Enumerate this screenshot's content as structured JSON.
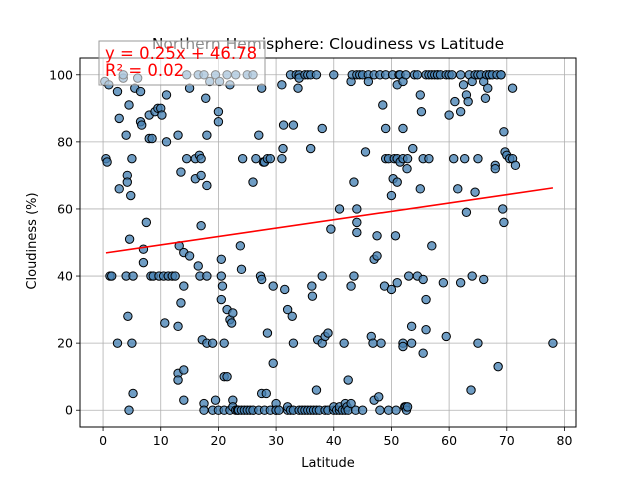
{
  "chart_data": {
    "type": "scatter",
    "title": "Northern Hemisphere: Cloudiness vs Latitude",
    "xlabel": "Latitude",
    "ylabel": "Cloudiness (%)",
    "xlim": [
      -4,
      82
    ],
    "ylim": [
      -5,
      105
    ],
    "xticks": [
      0,
      10,
      20,
      30,
      40,
      50,
      60,
      70,
      80
    ],
    "yticks": [
      0,
      20,
      40,
      60,
      80,
      100
    ],
    "grid": true,
    "colors": {
      "point_fill": "#4682b4",
      "point_edge": "#000000",
      "regression": "#ff0000",
      "grid": "#b0b0b0"
    },
    "regression": {
      "slope": 0.25,
      "intercept": 46.78,
      "x_range": [
        0.5,
        78
      ],
      "equation_text": "y = 0.25x + 46.78",
      "r2_text": "R² = 0.02"
    },
    "points": [
      [
        0.3,
        98
      ],
      [
        0.5,
        75
      ],
      [
        0.7,
        74
      ],
      [
        1,
        97
      ],
      [
        1.2,
        40
      ],
      [
        1.5,
        40
      ],
      [
        2.5,
        95
      ],
      [
        2.5,
        20
      ],
      [
        2.8,
        87
      ],
      [
        2.8,
        66
      ],
      [
        3.5,
        99
      ],
      [
        3.5,
        100
      ],
      [
        4,
        82
      ],
      [
        4,
        40
      ],
      [
        4.2,
        70
      ],
      [
        4.2,
        68
      ],
      [
        4.3,
        28
      ],
      [
        4.5,
        91
      ],
      [
        4.5,
        0
      ],
      [
        4.6,
        51
      ],
      [
        4.8,
        64
      ],
      [
        5,
        75
      ],
      [
        5,
        20
      ],
      [
        5.2,
        5
      ],
      [
        5.2,
        40
      ],
      [
        5.5,
        96
      ],
      [
        6,
        99
      ],
      [
        6.5,
        86
      ],
      [
        6.5,
        95
      ],
      [
        6.7,
        85
      ],
      [
        7,
        48
      ],
      [
        7,
        44
      ],
      [
        7.5,
        56
      ],
      [
        8,
        88
      ],
      [
        8,
        81
      ],
      [
        8.3,
        40
      ],
      [
        8.5,
        81
      ],
      [
        8.7,
        40
      ],
      [
        9,
        89
      ],
      [
        9.5,
        90
      ],
      [
        9.7,
        40
      ],
      [
        10,
        90
      ],
      [
        10.2,
        88
      ],
      [
        10.5,
        40
      ],
      [
        10.7,
        26
      ],
      [
        11,
        80
      ],
      [
        11,
        94
      ],
      [
        11.3,
        40
      ],
      [
        12,
        40
      ],
      [
        12.5,
        40
      ],
      [
        13,
        11
      ],
      [
        13,
        9
      ],
      [
        13,
        25
      ],
      [
        13,
        82
      ],
      [
        13.2,
        49
      ],
      [
        13.5,
        71
      ],
      [
        13.5,
        32
      ],
      [
        14,
        47
      ],
      [
        14,
        12
      ],
      [
        14,
        3
      ],
      [
        14,
        37
      ],
      [
        14.5,
        100
      ],
      [
        14.5,
        75
      ],
      [
        15,
        96
      ],
      [
        15,
        46
      ],
      [
        16,
        75
      ],
      [
        16,
        69
      ],
      [
        16.5,
        100
      ],
      [
        16.5,
        43
      ],
      [
        16.7,
        76
      ],
      [
        16.8,
        40
      ],
      [
        17,
        75
      ],
      [
        17,
        55
      ],
      [
        17,
        70
      ],
      [
        17.2,
        21
      ],
      [
        17.5,
        2
      ],
      [
        17.5,
        0
      ],
      [
        17.5,
        100
      ],
      [
        17.8,
        93
      ],
      [
        18,
        20
      ],
      [
        18,
        82
      ],
      [
        18,
        40
      ],
      [
        18,
        67
      ],
      [
        18.5,
        98
      ],
      [
        19,
        0
      ],
      [
        19,
        20
      ],
      [
        19.5,
        100
      ],
      [
        19.5,
        3
      ],
      [
        20,
        86
      ],
      [
        20,
        89
      ],
      [
        20,
        0
      ],
      [
        20.2,
        98
      ],
      [
        20.5,
        33
      ],
      [
        20.5,
        45
      ],
      [
        20.5,
        40
      ],
      [
        20.7,
        37
      ],
      [
        21,
        20
      ],
      [
        21,
        10
      ],
      [
        21,
        0
      ],
      [
        21.5,
        100
      ],
      [
        21.5,
        30
      ],
      [
        21.5,
        10
      ],
      [
        22,
        27
      ],
      [
        22,
        97
      ],
      [
        22,
        0
      ],
      [
        22.3,
        26
      ],
      [
        22.5,
        3
      ],
      [
        22.5,
        29
      ],
      [
        22.5,
        1
      ],
      [
        23,
        0
      ],
      [
        23,
        100
      ],
      [
        23.3,
        0
      ],
      [
        23.5,
        0
      ],
      [
        23.8,
        49
      ],
      [
        24,
        42
      ],
      [
        24,
        0
      ],
      [
        24.2,
        75
      ],
      [
        24.5,
        0
      ],
      [
        25,
        100
      ],
      [
        25,
        0
      ],
      [
        25.5,
        0
      ],
      [
        26,
        68
      ],
      [
        26,
        100
      ],
      [
        26,
        0
      ],
      [
        26.5,
        75
      ],
      [
        27,
        0
      ],
      [
        27,
        82
      ],
      [
        27.3,
        40
      ],
      [
        27.5,
        96
      ],
      [
        27.5,
        5
      ],
      [
        27.5,
        39
      ],
      [
        27.8,
        74
      ],
      [
        28,
        0
      ],
      [
        28,
        74
      ],
      [
        28.3,
        5
      ],
      [
        28.5,
        23
      ],
      [
        28.5,
        75
      ],
      [
        29,
        0
      ],
      [
        29,
        75
      ],
      [
        29.5,
        14
      ],
      [
        29.5,
        37
      ],
      [
        30,
        0
      ],
      [
        30,
        2
      ],
      [
        30,
        0
      ],
      [
        30.5,
        0
      ],
      [
        31,
        75
      ],
      [
        31,
        97
      ],
      [
        31.2,
        78
      ],
      [
        31.3,
        85
      ],
      [
        31.5,
        36
      ],
      [
        32,
        0
      ],
      [
        32,
        1
      ],
      [
        32,
        30
      ],
      [
        32.5,
        100
      ],
      [
        32.5,
        0
      ],
      [
        32.8,
        28
      ],
      [
        33,
        20
      ],
      [
        33,
        85
      ],
      [
        33,
        0
      ],
      [
        33.5,
        100
      ],
      [
        33.8,
        96
      ],
      [
        34,
        100
      ],
      [
        34,
        99
      ],
      [
        34,
        0
      ],
      [
        34.5,
        0
      ],
      [
        35,
        100
      ],
      [
        35,
        0
      ],
      [
        35.5,
        100
      ],
      [
        35.5,
        0
      ],
      [
        36,
        100
      ],
      [
        36,
        0
      ],
      [
        36,
        78
      ],
      [
        36.2,
        37
      ],
      [
        36.3,
        34
      ],
      [
        36.5,
        0
      ],
      [
        37,
        6
      ],
      [
        37,
        100
      ],
      [
        37,
        0
      ],
      [
        37.2,
        21
      ],
      [
        37.5,
        0
      ],
      [
        38,
        20
      ],
      [
        38,
        40
      ],
      [
        38,
        84
      ],
      [
        38.5,
        22
      ],
      [
        38.5,
        0
      ],
      [
        39,
        0
      ],
      [
        39,
        23
      ],
      [
        39.5,
        54
      ],
      [
        40,
        100
      ],
      [
        40,
        0
      ],
      [
        40,
        1
      ],
      [
        40.5,
        0
      ],
      [
        41,
        0
      ],
      [
        41,
        60
      ],
      [
        41,
        1
      ],
      [
        41.5,
        0
      ],
      [
        41.8,
        20
      ],
      [
        42,
        2
      ],
      [
        42,
        0
      ],
      [
        42.3,
        1
      ],
      [
        42.5,
        9
      ],
      [
        42.5,
        0
      ],
      [
        43,
        37
      ],
      [
        43,
        98
      ],
      [
        43,
        2
      ],
      [
        43.2,
        100
      ],
      [
        43.5,
        40
      ],
      [
        43.5,
        68
      ],
      [
        43.8,
        0
      ],
      [
        44,
        56
      ],
      [
        44,
        60
      ],
      [
        44,
        53
      ],
      [
        44,
        100
      ],
      [
        44.5,
        100
      ],
      [
        45,
        100
      ],
      [
        45,
        0
      ],
      [
        45.5,
        77
      ],
      [
        46,
        100
      ],
      [
        46,
        98
      ],
      [
        46.5,
        22
      ],
      [
        46.8,
        20
      ],
      [
        47,
        45
      ],
      [
        47,
        3
      ],
      [
        47,
        100
      ],
      [
        47.5,
        52
      ],
      [
        47.5,
        46
      ],
      [
        47.8,
        4
      ],
      [
        48,
        100
      ],
      [
        48,
        0
      ],
      [
        48.2,
        20
      ],
      [
        48.5,
        91
      ],
      [
        48.8,
        37
      ],
      [
        49,
        84
      ],
      [
        49,
        75
      ],
      [
        49,
        100
      ],
      [
        49.5,
        0
      ],
      [
        49.5,
        75
      ],
      [
        50,
        36
      ],
      [
        50,
        64
      ],
      [
        50.2,
        100
      ],
      [
        50.3,
        69
      ],
      [
        50.5,
        75
      ],
      [
        50.7,
        52
      ],
      [
        50.8,
        0
      ],
      [
        51,
        75
      ],
      [
        51,
        97
      ],
      [
        51,
        68
      ],
      [
        51,
        38
      ],
      [
        51.3,
        100
      ],
      [
        51.5,
        74
      ],
      [
        51.5,
        100
      ],
      [
        52,
        75
      ],
      [
        52,
        98
      ],
      [
        52,
        84
      ],
      [
        52,
        20
      ],
      [
        52,
        19
      ],
      [
        52.3,
        1
      ],
      [
        52.5,
        1
      ],
      [
        52.5,
        100
      ],
      [
        52.6,
        0
      ],
      [
        52.7,
        72
      ],
      [
        52.8,
        75
      ],
      [
        52.8,
        1
      ],
      [
        53,
        40
      ],
      [
        53.5,
        25
      ],
      [
        53.5,
        20
      ],
      [
        53.7,
        78
      ],
      [
        54,
        100
      ],
      [
        54.5,
        40
      ],
      [
        54.5,
        100
      ],
      [
        55,
        66
      ],
      [
        55,
        94
      ],
      [
        55.2,
        89
      ],
      [
        55.5,
        75
      ],
      [
        55.5,
        17
      ],
      [
        55.5,
        39
      ],
      [
        56,
        100
      ],
      [
        56,
        24
      ],
      [
        56,
        33
      ],
      [
        56.5,
        100
      ],
      [
        56.5,
        75
      ],
      [
        57,
        100
      ],
      [
        57,
        49
      ],
      [
        57.5,
        100
      ],
      [
        58,
        100
      ],
      [
        58,
        100
      ],
      [
        58.5,
        100
      ],
      [
        59,
        38
      ],
      [
        59.5,
        100
      ],
      [
        59.5,
        22
      ],
      [
        60,
        88
      ],
      [
        60,
        100
      ],
      [
        60.5,
        100
      ],
      [
        60.8,
        75
      ],
      [
        61,
        92
      ],
      [
        61.5,
        66
      ],
      [
        62,
        100
      ],
      [
        62,
        89
      ],
      [
        62,
        38
      ],
      [
        62.5,
        97
      ],
      [
        62.7,
        75
      ],
      [
        63,
        59
      ],
      [
        63,
        94
      ],
      [
        63.3,
        92
      ],
      [
        63.5,
        100
      ],
      [
        63.8,
        6
      ],
      [
        64,
        40
      ],
      [
        64,
        98
      ],
      [
        64.5,
        65
      ],
      [
        64.5,
        100
      ],
      [
        65,
        100
      ],
      [
        65,
        20
      ],
      [
        65,
        75
      ],
      [
        65.5,
        100
      ],
      [
        66,
        98
      ],
      [
        66,
        39
      ],
      [
        66.3,
        93
      ],
      [
        66.5,
        100
      ],
      [
        66.7,
        96
      ],
      [
        67,
        100
      ],
      [
        67,
        100
      ],
      [
        67.5,
        100
      ],
      [
        68,
        73
      ],
      [
        68,
        72
      ],
      [
        68.3,
        100
      ],
      [
        68.5,
        13
      ],
      [
        69,
        100
      ],
      [
        69,
        100
      ],
      [
        69.3,
        60
      ],
      [
        69.5,
        56
      ],
      [
        69.5,
        83
      ],
      [
        69.7,
        77
      ],
      [
        70,
        76
      ],
      [
        70.5,
        75
      ],
      [
        71,
        96
      ],
      [
        71,
        75
      ],
      [
        71.5,
        73
      ],
      [
        78,
        20
      ]
    ]
  }
}
